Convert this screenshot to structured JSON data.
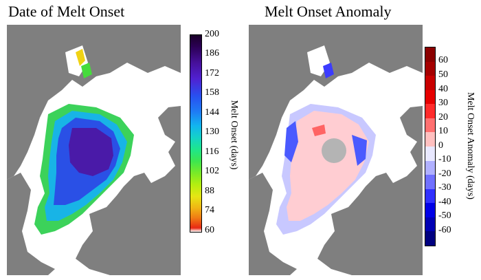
{
  "panels": {
    "left_title": "Date of Melt Onset",
    "right_title": "Melt Onset Anomaly"
  },
  "colorbars": {
    "left": {
      "label": "Melt Onset (days)",
      "ticks": [
        "200",
        "186",
        "172",
        "158",
        "144",
        "130",
        "116",
        "102",
        "88",
        "74",
        "60"
      ]
    },
    "right": {
      "label": "Melt Onset Anomaly (days)",
      "ticks": [
        "60",
        "50",
        "40",
        "30",
        "20",
        "10",
        "0",
        "-10",
        "-20",
        "-30",
        "-40",
        "-50",
        "-60"
      ],
      "colors": [
        "#8b0000",
        "#a50000",
        "#c80000",
        "#e60000",
        "#ff2b2b",
        "#ff7070",
        "#ffc0c0",
        "#e8e8ff",
        "#b0b0ff",
        "#7070ff",
        "#3030ff",
        "#0000e6",
        "#0000b4",
        "#000080"
      ]
    }
  }
}
